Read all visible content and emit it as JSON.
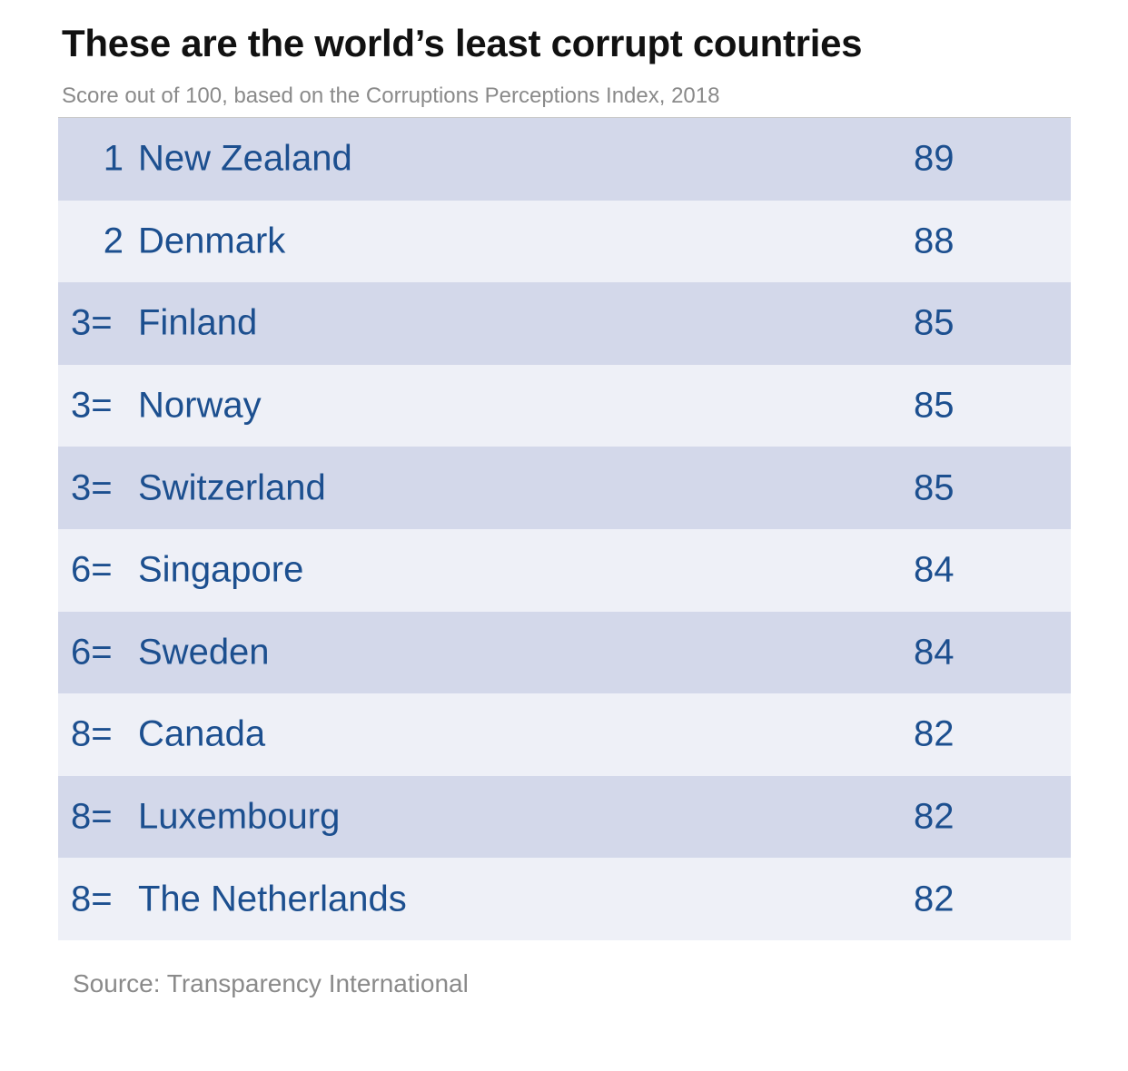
{
  "chart_data": {
    "type": "table",
    "title": "These are the world’s least corrupt countries",
    "subtitle": "Score out of 100, based on the Corruptions Perceptions Index, 2018",
    "rows": [
      {
        "rank": "1",
        "country": "New Zealand",
        "score": "89"
      },
      {
        "rank": "2",
        "country": "Denmark",
        "score": "88"
      },
      {
        "rank": "3=",
        "country": "Finland",
        "score": "85"
      },
      {
        "rank": "3=",
        "country": "Norway",
        "score": "85"
      },
      {
        "rank": "3=",
        "country": "Switzerland",
        "score": "85"
      },
      {
        "rank": "6=",
        "country": "Singapore",
        "score": "84"
      },
      {
        "rank": "6=",
        "country": "Sweden",
        "score": "84"
      },
      {
        "rank": "8=",
        "country": "Canada",
        "score": "82"
      },
      {
        "rank": "8=",
        "country": "Luxembourg",
        "score": "82"
      },
      {
        "rank": "8=",
        "country": "The Netherlands",
        "score": "82"
      }
    ],
    "source": "Source: Transparency International"
  },
  "colors": {
    "text_blue": "#1c4f8f",
    "row_dark": "#d3d8ea",
    "row_light": "#eef0f7"
  }
}
